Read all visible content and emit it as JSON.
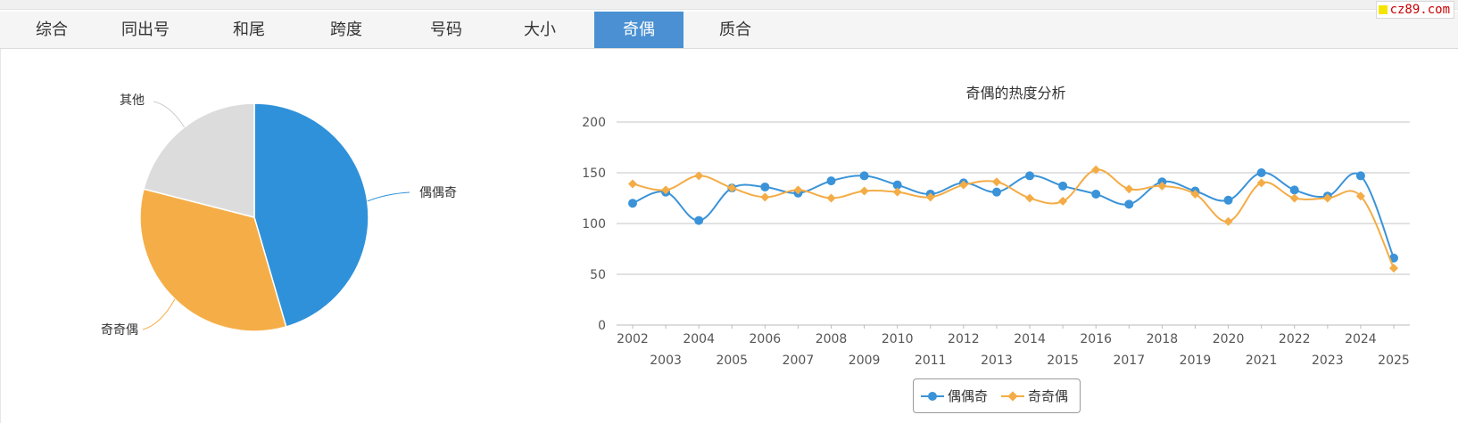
{
  "brand": {
    "text": "cz89.com"
  },
  "tabs": [
    {
      "label": "综合",
      "active": false
    },
    {
      "label": "同出号",
      "active": false
    },
    {
      "label": "和尾",
      "active": false
    },
    {
      "label": "跨度",
      "active": false
    },
    {
      "label": "号码",
      "active": false
    },
    {
      "label": "大小",
      "active": false
    },
    {
      "label": "奇偶",
      "active": true
    },
    {
      "label": "质合",
      "active": false
    }
  ],
  "colors": {
    "series1": "#3a93d8",
    "series2": "#f4ac46",
    "other": "#dddddd",
    "tab_active": "#4a90d2"
  },
  "chart_data": [
    {
      "type": "pie",
      "slices": [
        {
          "label": "偶偶奇",
          "value": 45.5,
          "color": "#2f91da"
        },
        {
          "label": "奇奇偶",
          "value": 33.5,
          "color": "#f5ae47"
        },
        {
          "label": "其他",
          "value": 21.0,
          "color": "#dcdcdc"
        }
      ]
    },
    {
      "type": "line",
      "title": "奇偶的热度分析",
      "x": [
        2002,
        2003,
        2004,
        2005,
        2006,
        2007,
        2008,
        2009,
        2010,
        2011,
        2012,
        2013,
        2014,
        2015,
        2016,
        2017,
        2018,
        2019,
        2020,
        2021,
        2022,
        2023,
        2024,
        2025
      ],
      "ylim": [
        0,
        200
      ],
      "yticks": [
        0,
        50,
        100,
        150,
        200
      ],
      "grid": true,
      "legend": "bottom-center",
      "series": [
        {
          "name": "偶偶奇",
          "marker": "circle",
          "color": "#3a93d8",
          "values": [
            120,
            131,
            103,
            135,
            136,
            130,
            142,
            147,
            138,
            129,
            140,
            131,
            147,
            137,
            129,
            119,
            141,
            132,
            123,
            150,
            133,
            127,
            147,
            66
          ]
        },
        {
          "name": "奇奇偶",
          "marker": "diamond",
          "color": "#f4ac46",
          "values": [
            139,
            133,
            147,
            135,
            126,
            133,
            125,
            132,
            131,
            126,
            138,
            141,
            125,
            122,
            153,
            134,
            137,
            129,
            102,
            140,
            125,
            125,
            127,
            56
          ]
        }
      ]
    }
  ]
}
